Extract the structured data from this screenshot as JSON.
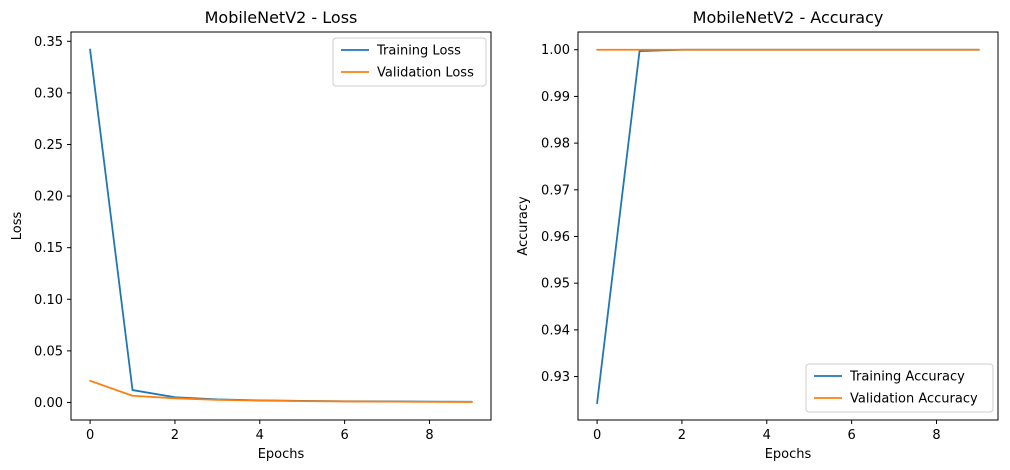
{
  "chart_data": [
    {
      "type": "line",
      "title": "MobileNetV2 - Loss",
      "xlabel": "Epochs",
      "ylabel": "Loss",
      "x": [
        0,
        1,
        2,
        3,
        4,
        5,
        6,
        7,
        8,
        9
      ],
      "xlim": [
        -0.45,
        9.45
      ],
      "ylim": [
        -0.017,
        0.359
      ],
      "xticks": [
        0,
        2,
        4,
        6,
        8
      ],
      "yticks": [
        0.0,
        0.05,
        0.1,
        0.15,
        0.2,
        0.25,
        0.3,
        0.35
      ],
      "ytick_labels": [
        "0.00",
        "0.05",
        "0.10",
        "0.15",
        "0.20",
        "0.25",
        "0.30",
        "0.35"
      ],
      "grid": false,
      "legend_position": "top-right",
      "series": [
        {
          "name": "Training Loss",
          "color": "#1f77b4",
          "values": [
            0.342,
            0.012,
            0.005,
            0.003,
            0.002,
            0.0015,
            0.0012,
            0.001,
            0.0008,
            0.0007
          ]
        },
        {
          "name": "Validation Loss",
          "color": "#ff7f0e",
          "values": [
            0.021,
            0.0065,
            0.004,
            0.0025,
            0.0018,
            0.0013,
            0.001,
            0.0008,
            0.0006,
            0.0005
          ]
        }
      ]
    },
    {
      "type": "line",
      "title": "MobileNetV2 - Accuracy",
      "xlabel": "Epochs",
      "ylabel": "Accuracy",
      "x": [
        0,
        1,
        2,
        3,
        4,
        5,
        6,
        7,
        8,
        9
      ],
      "xlim": [
        -0.45,
        9.45
      ],
      "ylim": [
        0.9207,
        1.0038
      ],
      "xticks": [
        0,
        2,
        4,
        6,
        8
      ],
      "yticks": [
        0.93,
        0.94,
        0.95,
        0.96,
        0.97,
        0.98,
        0.99,
        1.0
      ],
      "ytick_labels": [
        "0.93",
        "0.94",
        "0.95",
        "0.96",
        "0.97",
        "0.98",
        "0.99",
        "1.00"
      ],
      "grid": false,
      "legend_position": "bottom-right",
      "series": [
        {
          "name": "Training Accuracy",
          "color": "#1f77b4",
          "values": [
            0.9243,
            0.9997,
            1.0,
            1.0,
            1.0,
            1.0,
            1.0,
            1.0,
            1.0,
            1.0
          ]
        },
        {
          "name": "Validation Accuracy",
          "color": "#ff7f0e",
          "values": [
            1.0,
            1.0,
            1.0,
            1.0,
            1.0,
            1.0,
            1.0,
            1.0,
            1.0,
            1.0
          ]
        }
      ]
    }
  ]
}
